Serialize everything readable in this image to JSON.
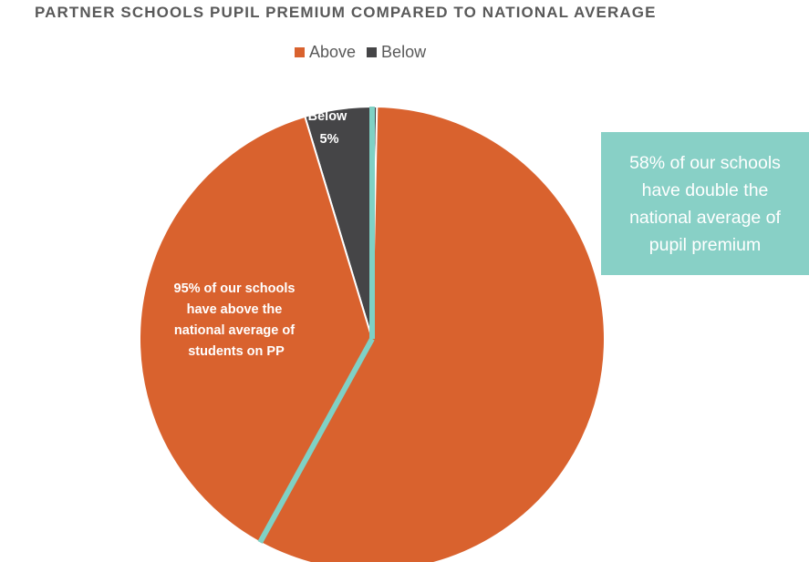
{
  "chart_data": {
    "type": "pie",
    "title": "PARTNER SCHOOLS PUPIL PREMIUM COMPARED TO NATIONAL AVERAGE",
    "legend": {
      "placement": "top-center",
      "entries": [
        "Above",
        "Below"
      ]
    },
    "slices": [
      {
        "name": "Above",
        "value": 95,
        "color": "#d9622e",
        "label_lines": [
          "95%  of our schools",
          "have above the",
          "national average of",
          "students on PP"
        ]
      },
      {
        "name": "Below",
        "value": 5,
        "color": "#454547",
        "label_lines": [
          "Below",
          "5%"
        ]
      }
    ],
    "highlight": {
      "value": 58,
      "color": "#7fd1c5",
      "callout_lines": [
        "58% of our schools",
        "have double the",
        "national average of",
        "pupil premium"
      ]
    }
  }
}
